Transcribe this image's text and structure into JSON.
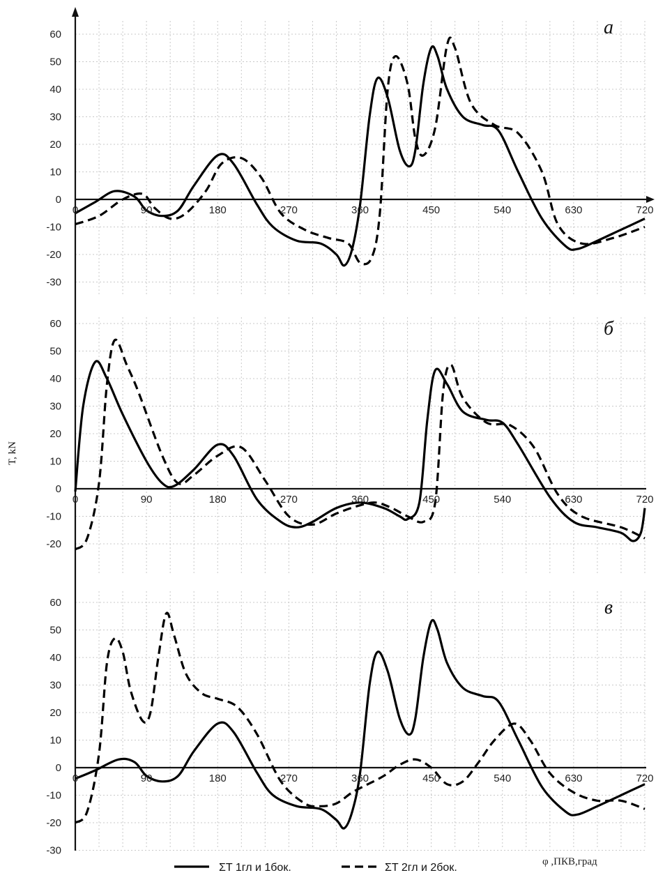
{
  "y_axis_label": "T, kN",
  "x_axis_label": "φ ,ПКВ,град",
  "legend": [
    {
      "style": "solid",
      "label": "ΣT 1гл и 1бок."
    },
    {
      "style": "dashed",
      "label": "ΣT 2гл и 2бок."
    }
  ],
  "chart_data": [
    {
      "type": "line",
      "panel": "a",
      "panel_label": "а",
      "x_ticks": [
        0,
        90,
        180,
        270,
        360,
        450,
        540,
        630,
        720
      ],
      "y_ticks": [
        -30,
        -20,
        -10,
        0,
        10,
        20,
        30,
        40,
        50,
        60
      ],
      "xlim": [
        0,
        720
      ],
      "ylim": [
        -30,
        60
      ],
      "series": [
        {
          "name": "ΣT 1гл и 1бок.",
          "style": "solid",
          "x": [
            0,
            25,
            50,
            75,
            90,
            110,
            130,
            150,
            180,
            200,
            230,
            250,
            280,
            310,
            330,
            340,
            350,
            360,
            372,
            382,
            395,
            410,
            422,
            430,
            440,
            450,
            458,
            470,
            490,
            515,
            535,
            560,
            590,
            620,
            635,
            660,
            690,
            720
          ],
          "y": [
            -5,
            -1,
            3,
            1,
            -4,
            -6,
            -4,
            5,
            16,
            13,
            -2,
            -10,
            -15,
            -16,
            -20,
            -24,
            -18,
            -2,
            30,
            44,
            37,
            18,
            12,
            18,
            42,
            55,
            52,
            40,
            30,
            27,
            25,
            10,
            -7,
            -17,
            -18,
            -15,
            -11,
            -7
          ]
        },
        {
          "name": "ΣT 2гл и 2бок.",
          "style": "dashed",
          "x": [
            0,
            30,
            60,
            85,
            100,
            120,
            140,
            165,
            185,
            210,
            235,
            260,
            290,
            320,
            345,
            360,
            375,
            385,
            395,
            405,
            420,
            430,
            440,
            455,
            470,
            480,
            500,
            530,
            560,
            590,
            610,
            640,
            680,
            720
          ],
          "y": [
            -9,
            -6,
            0,
            2,
            -3,
            -7,
            -5,
            3,
            13,
            15,
            8,
            -5,
            -11,
            -14,
            -16,
            -23,
            -21,
            -5,
            40,
            52,
            42,
            22,
            16,
            26,
            56,
            55,
            35,
            27,
            24,
            10,
            -9,
            -16,
            -14,
            -10
          ]
        }
      ]
    },
    {
      "type": "line",
      "panel": "б",
      "panel_label": "б",
      "x_ticks": [
        0,
        90,
        180,
        270,
        360,
        450,
        540,
        630,
        720
      ],
      "y_ticks": [
        -20,
        -10,
        0,
        10,
        20,
        30,
        40,
        50,
        60
      ],
      "xlim": [
        0,
        720
      ],
      "ylim": [
        -25,
        60
      ],
      "series": [
        {
          "name": "ΣT 1гл и 1бок.",
          "style": "solid",
          "x": [
            0,
            10,
            25,
            40,
            60,
            90,
            110,
            125,
            150,
            180,
            200,
            230,
            260,
            280,
            300,
            330,
            360,
            390,
            410,
            420,
            435,
            445,
            455,
            470,
            490,
            520,
            540,
            560,
            600,
            630,
            660,
            690,
            705,
            715,
            720
          ],
          "y": [
            -1,
            30,
            46,
            40,
            27,
            10,
            2,
            1,
            7,
            16,
            12,
            -4,
            -12,
            -14,
            -12,
            -7,
            -5,
            -7,
            -10,
            -11,
            -5,
            25,
            43,
            38,
            28,
            25,
            24,
            16,
            -3,
            -12,
            -14,
            -16,
            -19,
            -16,
            -7
          ]
        },
        {
          "name": "ΣT 2гл и 2бок.",
          "style": "dashed",
          "x": [
            0,
            15,
            30,
            40,
            50,
            65,
            80,
            110,
            130,
            150,
            180,
            210,
            240,
            270,
            300,
            330,
            360,
            380,
            400,
            420,
            440,
            455,
            465,
            475,
            490,
            520,
            550,
            580,
            610,
            640,
            690,
            720
          ],
          "y": [
            -22,
            -18,
            2,
            38,
            54,
            45,
            35,
            12,
            2,
            5,
            12,
            15,
            3,
            -10,
            -13,
            -9,
            -6,
            -5,
            -7,
            -10,
            -12,
            -5,
            35,
            45,
            33,
            24,
            23,
            15,
            -2,
            -10,
            -14,
            -18
          ]
        }
      ]
    },
    {
      "type": "line",
      "panel": "в",
      "panel_label": "в",
      "x_ticks": [
        0,
        90,
        180,
        270,
        360,
        450,
        540,
        630,
        720
      ],
      "y_ticks": [
        -30,
        -20,
        -10,
        0,
        10,
        20,
        30,
        40,
        50,
        60
      ],
      "xlim": [
        0,
        720
      ],
      "ylim": [
        -30,
        60
      ],
      "series": [
        {
          "name": "ΣT 1гл и 1бок.",
          "style": "solid",
          "x": [
            0,
            25,
            55,
            75,
            90,
            110,
            130,
            150,
            180,
            200,
            230,
            250,
            280,
            310,
            330,
            340,
            350,
            360,
            372,
            382,
            395,
            410,
            422,
            430,
            440,
            450,
            458,
            470,
            490,
            515,
            535,
            560,
            590,
            620,
            635,
            660,
            690,
            720
          ],
          "y": [
            -4,
            -1,
            3,
            2,
            -3,
            -5,
            -3,
            6,
            16,
            13,
            -2,
            -10,
            -14,
            -15,
            -19,
            -22,
            -16,
            -2,
            30,
            42,
            35,
            18,
            12,
            18,
            40,
            53,
            50,
            38,
            29,
            26,
            24,
            10,
            -7,
            -16,
            -17,
            -14,
            -10,
            -6
          ]
        },
        {
          "name": "ΣT 2гл и 2бок.",
          "style": "dashed",
          "x": [
            0,
            15,
            30,
            40,
            50,
            60,
            70,
            85,
            95,
            105,
            115,
            125,
            140,
            160,
            180,
            205,
            230,
            260,
            290,
            310,
            330,
            350,
            370,
            390,
            410,
            430,
            450,
            470,
            490,
            510,
            530,
            555,
            575,
            600,
            630,
            660,
            690,
            720
          ],
          "y": [
            -20,
            -16,
            5,
            38,
            47,
            42,
            28,
            17,
            20,
            40,
            56,
            48,
            34,
            27,
            25,
            22,
            12,
            -5,
            -13,
            -14,
            -13,
            -9,
            -6,
            -3,
            1,
            3,
            0,
            -6,
            -5,
            2,
            10,
            16,
            10,
            -2,
            -9,
            -12,
            -12,
            -15
          ]
        }
      ]
    }
  ]
}
